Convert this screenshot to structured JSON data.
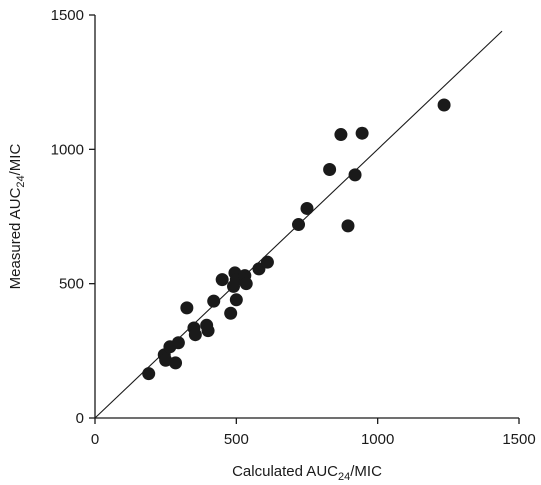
{
  "chart_data": {
    "type": "scatter",
    "title": "",
    "xlabel": {
      "prefix": "Calculated AUC",
      "subscript": "24",
      "suffix": "/MIC"
    },
    "ylabel": {
      "prefix": "Measured AUC",
      "subscript": "24",
      "suffix": "/MIC"
    },
    "xlim": [
      0,
      1500
    ],
    "ylim": [
      0,
      1500
    ],
    "xticks": [
      0,
      500,
      1000,
      1500
    ],
    "yticks": [
      0,
      500,
      1000,
      1500
    ],
    "xtick_labels": [
      "0",
      "500",
      "1000",
      "1500"
    ],
    "ytick_labels": [
      "0",
      "500",
      "1000",
      "1500"
    ],
    "grid": false,
    "legend": "none",
    "marker_color": "#1a1a1a",
    "reference_line": {
      "kind": "identity",
      "x": [
        0,
        1440
      ],
      "y": [
        0,
        1440
      ]
    },
    "series": [
      {
        "x": [
          190,
          245,
          250,
          265,
          285,
          295,
          325,
          350,
          355,
          395,
          400,
          420,
          450,
          480,
          490,
          495,
          500,
          500,
          530,
          535,
          580,
          610,
          720,
          750,
          830,
          870,
          895,
          920,
          945,
          1235
        ],
        "y": [
          165,
          235,
          215,
          265,
          205,
          280,
          410,
          335,
          310,
          345,
          325,
          435,
          515,
          390,
          490,
          540,
          440,
          515,
          530,
          500,
          555,
          580,
          720,
          780,
          925,
          1055,
          715,
          905,
          1060,
          1165
        ]
      }
    ]
  }
}
